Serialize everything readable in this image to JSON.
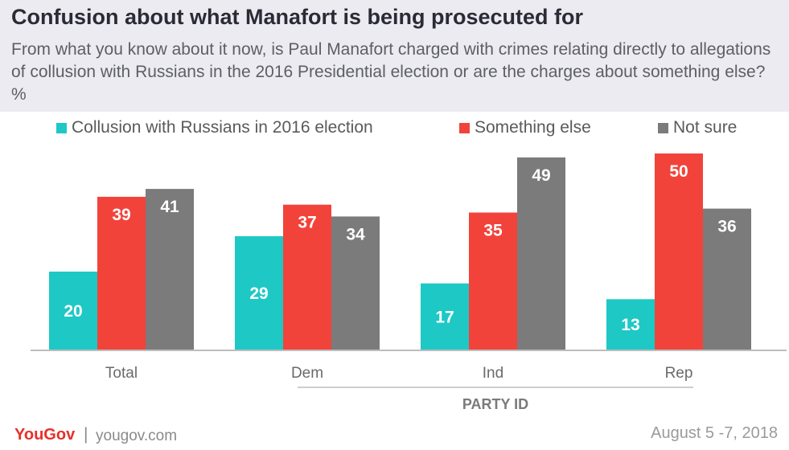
{
  "title": "Confusion about what Manafort is being prosecuted for",
  "subtitle": "From what you know about it now, is Paul Manafort charged with crimes relating directly to allegations of collusion with Russians in the 2016 Presidential election or are the charges about something else? %",
  "colors": {
    "header_bg": "#ebebf1",
    "series_1": "#1ec8c5",
    "series_2": "#f2433b",
    "series_3": "#7b7b7b"
  },
  "chart_data": {
    "type": "bar",
    "categories": [
      "Total",
      "Dem",
      "Ind",
      "Rep"
    ],
    "category_group_label": "PARTY ID",
    "grouped_categories": [
      "Dem",
      "Ind",
      "Rep"
    ],
    "series": [
      {
        "name": "Collusion with Russians in 2016 election",
        "color": "#1ec8c5",
        "values": [
          20,
          29,
          17,
          13
        ]
      },
      {
        "name": "Something else",
        "color": "#f2433b",
        "values": [
          39,
          37,
          35,
          50
        ]
      },
      {
        "name": "Not sure",
        "color": "#7b7b7b",
        "values": [
          41,
          34,
          49,
          36
        ]
      }
    ],
    "ylim": [
      0,
      50
    ],
    "grid": false,
    "legend_position": "top",
    "data_labels": true
  },
  "footer": {
    "brand": "YouGov",
    "separator": "|",
    "site": "yougov.com",
    "date": "August 5 -7, 2018"
  }
}
